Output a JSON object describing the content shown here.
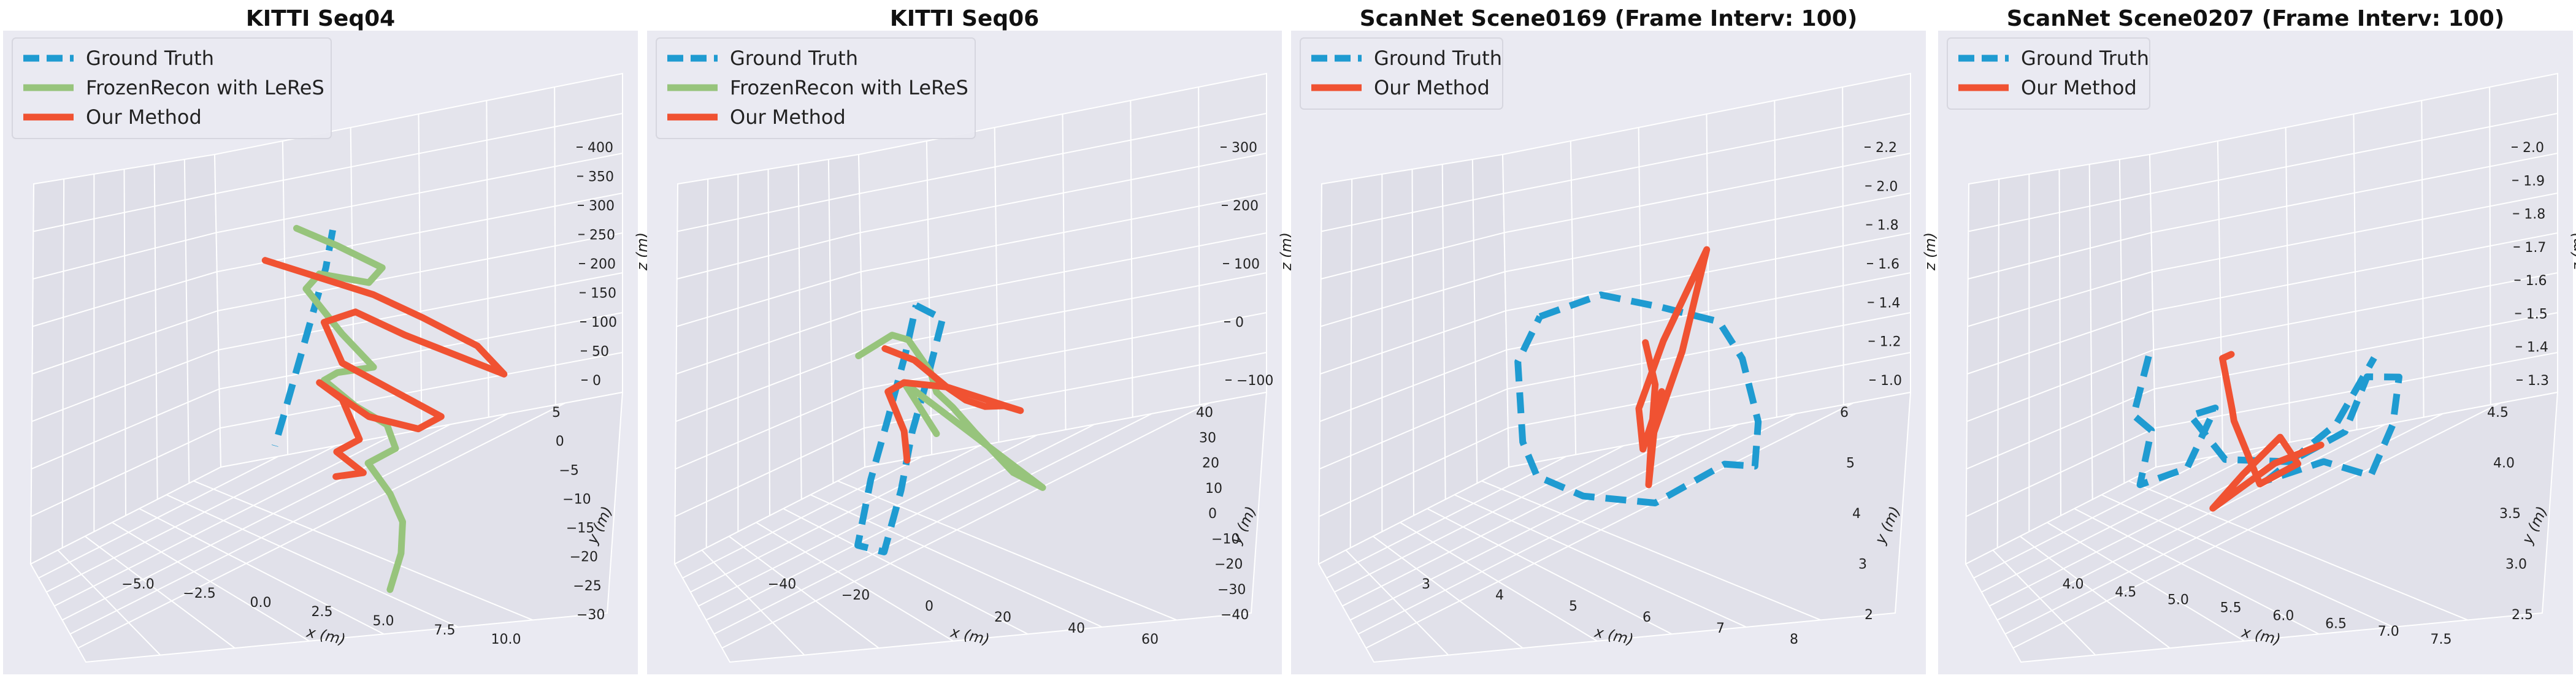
{
  "chart_data": [
    {
      "type": "line",
      "title": "KITTI Seq04",
      "xlabel": "x (m)",
      "ylabel": "y (m)",
      "zlabel": "z (m)",
      "x_ticks": [
        "−5.0",
        "−2.5",
        "0.0",
        "2.5",
        "5.0",
        "7.5",
        "10.0"
      ],
      "y_ticks": [
        "5",
        "0",
        "−5",
        "−10",
        "−15",
        "−20",
        "−25",
        "−30"
      ],
      "z_ticks": [
        "400",
        "350",
        "300",
        "250",
        "200",
        "150",
        "100",
        "50",
        "0"
      ],
      "xlim": [
        -7,
        12
      ],
      "ylim": [
        -32,
        7
      ],
      "zlim": [
        -20,
        420
      ],
      "legend_position": "top-left",
      "series": [
        {
          "name": "Ground Truth",
          "color": "#1f9bd1",
          "style": "dashed",
          "points": [
            [
              0.0,
              0,
              300
            ],
            [
              0.4,
              -3,
              260
            ],
            [
              0.6,
              -6,
              220
            ],
            [
              0.8,
              -9,
              180
            ],
            [
              1.0,
              -12,
              140
            ],
            [
              1.2,
              -15,
              100
            ],
            [
              1.5,
              -18,
              70
            ]
          ]
        },
        {
          "name": "FrozenRecon with LeReS",
          "color": "#97c47c",
          "style": "solid",
          "points": [
            [
              -2,
              0,
              290
            ],
            [
              0.5,
              -1,
              285
            ],
            [
              3,
              -1,
              270
            ],
            [
              2,
              0,
              240
            ],
            [
              -1,
              1,
              230
            ],
            [
              -2,
              2,
              200
            ],
            [
              0,
              2,
              150
            ],
            [
              2,
              1,
              120
            ],
            [
              0,
              1,
              100
            ],
            [
              -1,
              2,
              80
            ],
            [
              1,
              1,
              60
            ],
            [
              3,
              0,
              50
            ],
            [
              4,
              -2,
              30
            ],
            [
              3,
              -4,
              10
            ],
            [
              5,
              -7,
              -10
            ],
            [
              7,
              -12,
              -20
            ],
            [
              9,
              -20,
              -25
            ],
            [
              11,
              -30,
              -30
            ]
          ]
        },
        {
          "name": "Our Method",
          "color": "#f05232",
          "style": "solid",
          "points": [
            [
              -4,
              1,
              230
            ],
            [
              -1,
              1,
              225
            ],
            [
              2,
              1,
              220
            ],
            [
              5,
              0,
              210
            ],
            [
              8,
              0,
              190
            ],
            [
              10,
              -2,
              170
            ],
            [
              4,
              0,
              180
            ],
            [
              1,
              1,
              190
            ],
            [
              -1,
              2,
              160
            ],
            [
              0,
              2,
              110
            ],
            [
              3,
              1,
              95
            ],
            [
              6,
              0,
              80
            ],
            [
              5,
              -1,
              60
            ],
            [
              2,
              0,
              55
            ],
            [
              -1,
              1,
              80
            ],
            [
              0,
              2,
              60
            ],
            [
              2,
              -2,
              30
            ],
            [
              1,
              -3,
              10
            ],
            [
              3,
              -5,
              0
            ],
            [
              2,
              -7,
              -5
            ]
          ]
        }
      ]
    },
    {
      "type": "line",
      "title": "KITTI Seq06",
      "xlabel": "x (m)",
      "ylabel": "y (m)",
      "zlabel": "z (m)",
      "x_ticks": [
        "−40",
        "−20",
        "0",
        "20",
        "40",
        "60"
      ],
      "y_ticks": [
        "40",
        "30",
        "20",
        "10",
        "0",
        "−10",
        "−20",
        "−30",
        "−40"
      ],
      "z_ticks": [
        "300",
        "200",
        "100",
        "0",
        "−100"
      ],
      "xlim": [
        -55,
        75
      ],
      "ylim": [
        -45,
        45
      ],
      "zlim": [
        -150,
        310
      ],
      "legend_position": "top-left",
      "series": [
        {
          "name": "Ground Truth",
          "color": "#1f9bd1",
          "style": "dashed",
          "points": [
            [
              0,
              -10,
              140
            ],
            [
              10,
              -10,
              130
            ],
            [
              12,
              -20,
              60
            ],
            [
              14,
              -30,
              0
            ],
            [
              16,
              -38,
              -70
            ],
            [
              15,
              -45,
              -150
            ],
            [
              5,
              -45,
              -150
            ],
            [
              3,
              -36,
              -70
            ],
            [
              1,
              -25,
              0
            ],
            [
              0,
              -15,
              80
            ],
            [
              0,
              -10,
              140
            ]
          ]
        },
        {
          "name": "FrozenRecon with LeReS",
          "color": "#97c47c",
          "style": "solid",
          "points": [
            [
              -45,
              20,
              -20
            ],
            [
              -40,
              30,
              0
            ],
            [
              -30,
              25,
              10
            ],
            [
              -10,
              10,
              5
            ],
            [
              0,
              0,
              0
            ],
            [
              10,
              -5,
              -5
            ],
            [
              30,
              -20,
              0
            ],
            [
              60,
              -40,
              0
            ],
            [
              75,
              -45,
              0
            ],
            [
              -20,
              10,
              -20
            ],
            [
              -10,
              5,
              -40
            ],
            [
              0,
              0,
              -60
            ]
          ]
        },
        {
          "name": "Our Method",
          "color": "#f05232",
          "style": "solid",
          "points": [
            [
              -35,
              20,
              0
            ],
            [
              -20,
              15,
              5
            ],
            [
              0,
              5,
              0
            ],
            [
              15,
              -5,
              10
            ],
            [
              30,
              -15,
              30
            ],
            [
              45,
              -25,
              60
            ],
            [
              55,
              -30,
              70
            ],
            [
              0,
              5,
              0
            ],
            [
              -20,
              10,
              -20
            ],
            [
              -30,
              15,
              -50
            ],
            [
              -20,
              10,
              -90
            ],
            [
              -15,
              5,
              -120
            ]
          ]
        }
      ]
    },
    {
      "type": "line",
      "title": "ScanNet Scene0169 (Frame Interv: 100)",
      "xlabel": "x (m)",
      "ylabel": "y (m)",
      "zlabel": "z (m)",
      "x_ticks": [
        "3",
        "4",
        "5",
        "6",
        "7",
        "8"
      ],
      "y_ticks": [
        "6",
        "5",
        "4",
        "3",
        "2"
      ],
      "z_ticks": [
        "2.2",
        "2.0",
        "1.8",
        "1.6",
        "1.4",
        "1.2",
        "1.0"
      ],
      "xlim": [
        2.4,
        8.4
      ],
      "ylim": [
        1.5,
        6.5
      ],
      "zlim": [
        0.9,
        2.3
      ],
      "legend_position": "top-left",
      "series": [
        {
          "name": "Ground Truth",
          "color": "#1f9bd1",
          "style": "dashed",
          "points": [
            [
              3.2,
              5.6,
              1.45
            ],
            [
              4.2,
              5.7,
              1.6
            ],
            [
              5.2,
              5.8,
              1.6
            ],
            [
              6.2,
              5.8,
              1.6
            ],
            [
              6.8,
              5.5,
              1.5
            ],
            [
              7.4,
              5.0,
              1.3
            ],
            [
              7.6,
              4.6,
              1.15
            ],
            [
              7.2,
              4.4,
              1.15
            ],
            [
              6.5,
              3.6,
              1.0
            ],
            [
              5.5,
              3.2,
              1.0
            ],
            [
              4.5,
              3.5,
              1.0
            ],
            [
              3.8,
              4.2,
              1.05
            ],
            [
              3.2,
              5.0,
              1.3
            ],
            [
              3.2,
              5.6,
              1.45
            ]
          ]
        },
        {
          "name": "Our Method",
          "color": "#f05232",
          "style": "solid",
          "points": [
            [
              5.3,
              5.2,
              1.5
            ],
            [
              5.6,
              5.0,
              1.35
            ],
            [
              5.8,
              4.6,
              1.2
            ],
            [
              6.0,
              4.2,
              1.0
            ],
            [
              5.9,
              4.5,
              1.2
            ],
            [
              6.2,
              4.8,
              1.55
            ],
            [
              6.5,
              5.0,
              2.0
            ],
            [
              6.0,
              4.6,
              1.6
            ],
            [
              5.7,
              4.4,
              1.3
            ],
            [
              5.9,
              4.2,
              1.15
            ],
            [
              6.1,
              4.4,
              1.4
            ]
          ]
        }
      ]
    },
    {
      "type": "line",
      "title": "ScanNet Scene0207 (Frame Interv: 100)",
      "xlabel": "x (m)",
      "ylabel": "y (m)",
      "zlabel": "z (m)",
      "x_ticks": [
        "4.0",
        "4.5",
        "5.0",
        "5.5",
        "6.0",
        "6.5",
        "7.0",
        "7.5"
      ],
      "y_ticks": [
        "4.5",
        "4.0",
        "3.5",
        "3.0",
        "2.5"
      ],
      "z_ticks": [
        "2.0",
        "1.9",
        "1.8",
        "1.7",
        "1.6",
        "1.5",
        "1.4",
        "1.3"
      ],
      "xlim": [
        3.6,
        7.9
      ],
      "ylim": [
        2.2,
        4.8
      ],
      "zlim": [
        1.22,
        2.05
      ],
      "legend_position": "top-left",
      "series": [
        {
          "name": "Ground Truth",
          "color": "#1f9bd1",
          "style": "dashed",
          "points": [
            [
              3.9,
              4.1,
              1.45
            ],
            [
              3.8,
              4.0,
              1.3
            ],
            [
              4.2,
              3.8,
              1.3
            ],
            [
              4.5,
              3.3,
              1.22
            ],
            [
              5.0,
              3.4,
              1.28
            ],
            [
              5.0,
              3.8,
              1.4
            ],
            [
              4.6,
              3.9,
              1.35
            ],
            [
              5.3,
              3.6,
              1.3
            ],
            [
              6.2,
              3.5,
              1.35
            ],
            [
              6.8,
              3.6,
              1.45
            ],
            [
              6.9,
              3.8,
              1.58
            ],
            [
              7.3,
              3.8,
              1.6
            ],
            [
              7.4,
              3.6,
              1.5
            ],
            [
              7.3,
              3.4,
              1.38
            ],
            [
              6.8,
              3.3,
              1.4
            ],
            [
              6.0,
              3.4,
              1.3
            ],
            [
              6.6,
              3.7,
              1.45
            ],
            [
              6.9,
              3.9,
              1.62
            ]
          ]
        },
        {
          "name": "Our Method",
          "color": "#f05232",
          "style": "solid",
          "points": [
            [
              5.2,
              3.8,
              1.55
            ],
            [
              5.0,
              3.9,
              1.52
            ],
            [
              5.3,
              3.7,
              1.42
            ],
            [
              5.5,
              3.5,
              1.42
            ],
            [
              6.0,
              3.3,
              1.3
            ],
            [
              6.3,
              3.5,
              1.35
            ],
            [
              5.9,
              3.7,
              1.38
            ],
            [
              5.7,
              3.4,
              1.3
            ],
            [
              5.5,
              3.2,
              1.22
            ],
            [
              6.1,
              3.4,
              1.35
            ],
            [
              6.5,
              3.6,
              1.4
            ],
            [
              6.2,
              3.5,
              1.36
            ]
          ]
        }
      ]
    }
  ]
}
